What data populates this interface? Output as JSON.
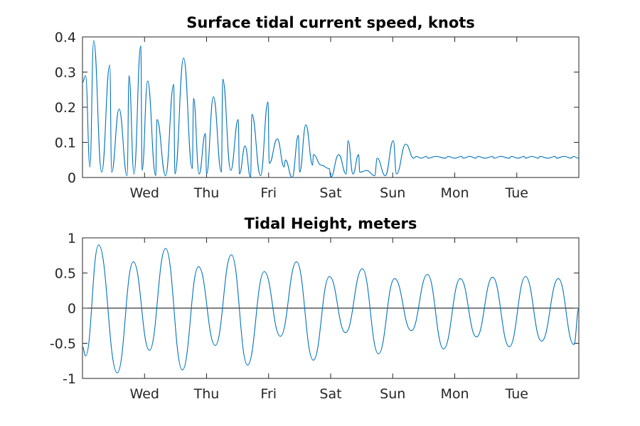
{
  "chart_data": [
    {
      "type": "line",
      "title": "Surface tidal current speed, knots",
      "xlabel": "",
      "ylabel": "",
      "ylim": [
        0,
        0.4
      ],
      "yticks": [
        0,
        0.1,
        0.2,
        0.3,
        0.4
      ],
      "ytick_labels": [
        "0",
        "0.1",
        "0.2",
        "0.3",
        "0.4"
      ],
      "xlim": [
        0,
        8
      ],
      "xticks": [
        1,
        2,
        3,
        4,
        5,
        6,
        7
      ],
      "xtick_labels": [
        "Wed",
        "Thu",
        "Fri",
        "Sat",
        "Sun",
        "Mon",
        "Tue"
      ],
      "grid": false,
      "color": "#0072bd",
      "series": [
        {
          "x": [
            0.0,
            0.05,
            0.12,
            0.18,
            0.31,
            0.44,
            0.47,
            0.59,
            0.72,
            0.75,
            0.83,
            0.94,
            0.96,
            1.05,
            1.18,
            1.2,
            1.34,
            1.47,
            1.49,
            1.63,
            1.77,
            1.79,
            1.88,
            1.98,
            2.0,
            2.11,
            2.24,
            2.26,
            2.39,
            2.51,
            2.53,
            2.62,
            2.71,
            2.73,
            2.87,
            2.99,
            3.01,
            3.14,
            3.25,
            3.27,
            3.38,
            3.48,
            3.5,
            3.6,
            3.71,
            3.72,
            3.85,
            3.98,
            4.0,
            4.13,
            4.25,
            4.28,
            4.36,
            4.45,
            4.47,
            4.58,
            4.71,
            4.75,
            4.88,
            5.01,
            5.06,
            5.21,
            5.34,
            5.38,
            5.46,
            5.54,
            5.57,
            5.7,
            5.85,
            5.89,
            6.0,
            6.11,
            6.14,
            6.24,
            6.34,
            6.37,
            6.49,
            6.61,
            6.63,
            6.74,
            6.88,
            6.91,
            7.02,
            7.12,
            7.14,
            7.24,
            7.35,
            7.37,
            7.5,
            7.62,
            7.64,
            7.76,
            7.88,
            7.91,
            8.0
          ],
          "y": [
            0.27,
            0.29,
            0.03,
            0.39,
            0.015,
            0.32,
            0.015,
            0.195,
            0.005,
            0.29,
            0.01,
            0.375,
            0.02,
            0.275,
            0.005,
            0.165,
            0.005,
            0.265,
            0.01,
            0.34,
            0.025,
            0.225,
            0.01,
            0.125,
            0.01,
            0.23,
            0.015,
            0.28,
            0.02,
            0.165,
            0.01,
            0.09,
            0.0,
            0.18,
            0.005,
            0.215,
            0.04,
            0.11,
            0.03,
            0.05,
            0.0,
            0.12,
            0.015,
            0.15,
            0.035,
            0.065,
            0.035,
            0.025,
            0.0,
            0.065,
            0.01,
            0.105,
            0.01,
            0.065,
            0.015,
            0.02,
            0.005,
            0.055,
            0.005,
            0.105,
            0.01,
            0.095,
            0.055,
            0.06,
            0.055,
            0.06,
            0.055,
            0.06,
            0.055,
            0.06,
            0.055,
            0.06,
            0.055,
            0.06,
            0.055,
            0.06,
            0.055,
            0.06,
            0.055,
            0.06,
            0.055,
            0.06,
            0.055,
            0.06,
            0.055,
            0.06,
            0.055,
            0.06,
            0.055,
            0.06,
            0.055,
            0.06,
            0.055,
            0.06,
            0.055
          ]
        }
      ]
    },
    {
      "type": "line",
      "title": "Tidal Height, meters",
      "xlabel": "",
      "ylabel": "",
      "ylim": [
        -1,
        1
      ],
      "yticks": [
        -1,
        -0.5,
        0,
        0.5,
        1
      ],
      "ytick_labels": [
        "-1",
        "-0.5",
        "0",
        "0.5",
        "1"
      ],
      "xlim": [
        0,
        8
      ],
      "xticks": [
        1,
        2,
        3,
        4,
        5,
        6,
        7
      ],
      "xtick_labels": [
        "Wed",
        "Thu",
        "Fri",
        "Sat",
        "Sun",
        "Mon",
        "Tue"
      ],
      "grid": false,
      "zero_line": true,
      "color": "#0072bd",
      "series": [
        {
          "x": [
            0.0,
            0.05,
            0.26,
            0.56,
            0.82,
            1.08,
            1.34,
            1.61,
            1.87,
            2.14,
            2.4,
            2.66,
            2.93,
            3.19,
            3.45,
            3.72,
            3.98,
            4.24,
            4.51,
            4.77,
            5.03,
            5.3,
            5.56,
            5.82,
            6.09,
            6.35,
            6.61,
            6.88,
            7.14,
            7.4,
            7.67,
            7.92,
            8.0
          ],
          "y": [
            -0.55,
            -0.68,
            0.9,
            -0.92,
            0.66,
            -0.6,
            0.85,
            -0.88,
            0.59,
            -0.53,
            0.76,
            -0.81,
            0.52,
            -0.4,
            0.66,
            -0.74,
            0.45,
            -0.35,
            0.56,
            -0.65,
            0.42,
            -0.32,
            0.48,
            -0.58,
            0.42,
            -0.41,
            0.44,
            -0.55,
            0.45,
            -0.47,
            0.42,
            -0.52,
            0.0
          ]
        }
      ]
    }
  ]
}
